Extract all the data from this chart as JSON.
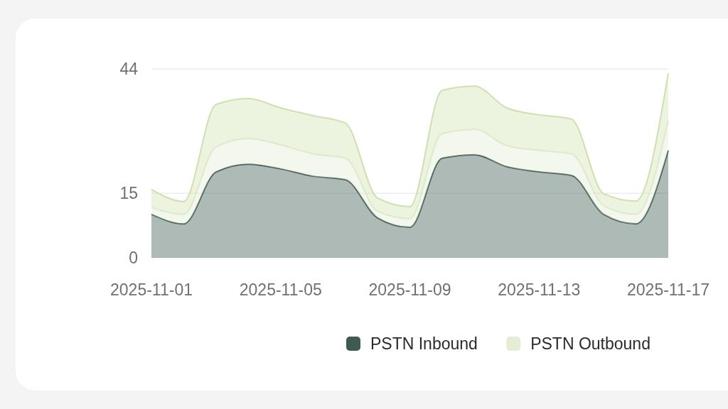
{
  "chart_data": {
    "type": "area",
    "stacked": true,
    "x": [
      "2025-11-01",
      "2025-11-02",
      "2025-11-03",
      "2025-11-04",
      "2025-11-05",
      "2025-11-06",
      "2025-11-07",
      "2025-11-08",
      "2025-11-09",
      "2025-11-10",
      "2025-11-11",
      "2025-11-12",
      "2025-11-13",
      "2025-11-14",
      "2025-11-15",
      "2025-11-16",
      "2025-11-17"
    ],
    "series": [
      {
        "name": "PSTN Inbound",
        "color": "#3f5a50",
        "values": [
          10.1,
          7.9,
          20.0,
          21.8,
          20.7,
          19.0,
          18.2,
          9.3,
          7.1,
          23.2,
          24.0,
          21.2,
          20.0,
          19.2,
          10.1,
          7.9,
          25.0
        ]
      },
      {
        "color": "#e3ecd3",
        "values": [
          1.6,
          2.2,
          5.8,
          6.0,
          5.6,
          5.2,
          5.0,
          1.5,
          2.0,
          5.7,
          5.9,
          4.9,
          5.0,
          5.0,
          2.0,
          2.2,
          6.9
        ]
      },
      {
        "name": "PSTN Outbound",
        "color": "#cfe0b0",
        "values": [
          4.2,
          3.0,
          9.9,
          9.3,
          8.6,
          8.9,
          8.2,
          3.1,
          2.8,
          10.1,
          10.1,
          8.8,
          8.3,
          8.1,
          2.8,
          3.1,
          11.1
        ]
      }
    ],
    "xlim": [
      "2025-11-01",
      "2025-11-17"
    ],
    "xticks": [
      "2025-11-01",
      "2025-11-05",
      "2025-11-09",
      "2025-11-13",
      "2025-11-17"
    ],
    "ylim": [
      0,
      44
    ],
    "yticks": [
      0,
      15,
      44
    ],
    "grid": "y",
    "legend": "bottom"
  }
}
